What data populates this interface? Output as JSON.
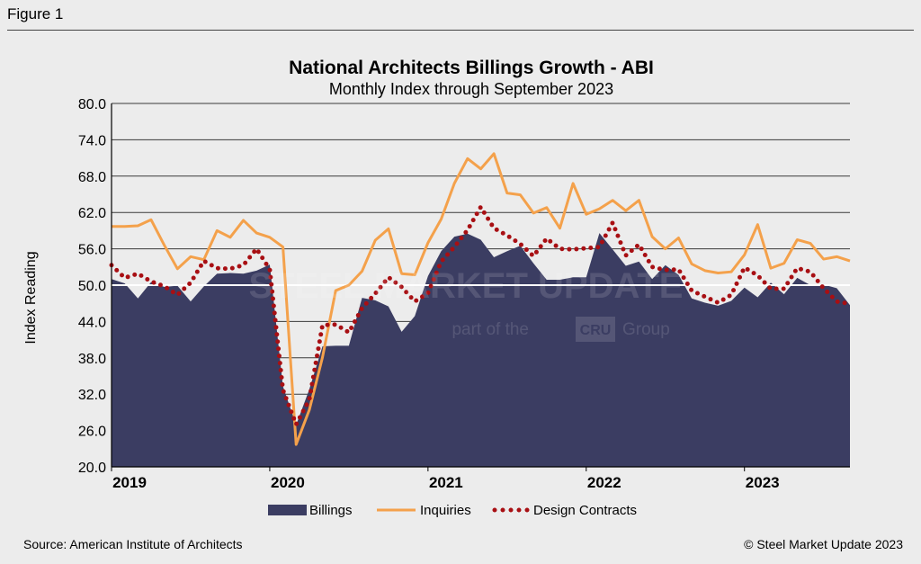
{
  "figure_label": "Figure 1",
  "source": "Source: American Institute of Architects",
  "copyright": "© Steel Market Update 2023",
  "watermark": {
    "brand": "STEEL MARKET UPDATE",
    "sub_prefix": "part of the",
    "sub_logo": "CRU",
    "sub_suffix": "Group"
  },
  "colors": {
    "billings": "#3b3d62",
    "inquiries": "#f4a14b",
    "design_contracts": "#a80f13",
    "reference_line": "#ffffff"
  },
  "chart_data": {
    "type": "area",
    "title": "National Architects Billings Growth - ABI",
    "subtitle": "Monthly Index through September 2023",
    "ylabel": "Index Reading",
    "xlabel": "",
    "ylim": [
      20,
      80
    ],
    "yticks": [
      "20.0",
      "26.0",
      "32.0",
      "38.0",
      "44.0",
      "50.0",
      "56.0",
      "62.0",
      "68.0",
      "74.0",
      "80.0"
    ],
    "reference_value": 50,
    "x": [
      "2019-01",
      "2019-02",
      "2019-03",
      "2019-04",
      "2019-05",
      "2019-06",
      "2019-07",
      "2019-08",
      "2019-09",
      "2019-10",
      "2019-11",
      "2019-12",
      "2020-01",
      "2020-02",
      "2020-03",
      "2020-04",
      "2020-05",
      "2020-06",
      "2020-07",
      "2020-08",
      "2020-09",
      "2020-10",
      "2020-11",
      "2020-12",
      "2021-01",
      "2021-02",
      "2021-03",
      "2021-04",
      "2021-05",
      "2021-06",
      "2021-07",
      "2021-08",
      "2021-09",
      "2021-10",
      "2021-11",
      "2021-12",
      "2022-01",
      "2022-02",
      "2022-03",
      "2022-04",
      "2022-05",
      "2022-06",
      "2022-07",
      "2022-08",
      "2022-09",
      "2022-10",
      "2022-11",
      "2022-12",
      "2023-01",
      "2023-02",
      "2023-03",
      "2023-04",
      "2023-05",
      "2023-06",
      "2023-07",
      "2023-08",
      "2023-09"
    ],
    "xticks": [
      {
        "label": "2019",
        "x": "2019-01"
      },
      {
        "label": "2020",
        "x": "2020-01"
      },
      {
        "label": "2021",
        "x": "2021-01"
      },
      {
        "label": "2022",
        "x": "2022-01"
      },
      {
        "label": "2023",
        "x": "2023-01"
      }
    ],
    "legend_position": "bottom",
    "series": [
      {
        "name": "Billings",
        "style": "area",
        "values": [
          51.0,
          50.3,
          47.8,
          50.5,
          49.7,
          49.9,
          47.3,
          49.8,
          51.9,
          52.0,
          51.9,
          52.4,
          53.4,
          33.3,
          26.9,
          32.8,
          39.9,
          40.0,
          40.0,
          47.9,
          47.5,
          46.5,
          42.3,
          44.9,
          51.5,
          55.6,
          58.0,
          58.5,
          57.5,
          54.6,
          55.6,
          56.5,
          53.6,
          50.9,
          50.9,
          51.3,
          51.3,
          58.6,
          55.9,
          53.2,
          53.9,
          51.0,
          53.3,
          51.7,
          47.8,
          47.1,
          46.6,
          47.4,
          49.6,
          48.0,
          50.4,
          48.5,
          51.2,
          50.0,
          50.1,
          49.5,
          46.7
        ]
      },
      {
        "name": "Inquiries",
        "style": "line",
        "values": [
          59.7,
          59.7,
          59.8,
          60.8,
          56.6,
          52.7,
          54.7,
          54.2,
          59.0,
          57.9,
          60.7,
          58.6,
          57.9,
          56.3,
          23.7,
          29.4,
          38.1,
          49.1,
          50.0,
          52.3,
          57.4,
          59.3,
          51.9,
          51.7,
          57.0,
          60.9,
          66.8,
          70.9,
          69.2,
          71.7,
          65.2,
          64.9,
          61.9,
          62.8,
          59.4,
          66.8,
          61.7,
          62.6,
          64.0,
          62.3,
          64.0,
          58.0,
          56.0,
          57.8,
          53.5,
          52.4,
          52.0,
          52.2,
          55.0,
          60.0,
          52.8,
          53.6,
          57.5,
          56.9,
          54.3,
          54.7,
          54.0
        ]
      },
      {
        "name": "Design Contracts",
        "style": "dotted",
        "values": [
          53.3,
          51.2,
          51.9,
          50.6,
          49.8,
          48.4,
          50.4,
          54.0,
          52.8,
          52.7,
          53.3,
          56.0,
          52.6,
          32.7,
          27.0,
          31.1,
          43.4,
          43.5,
          42.2,
          46.2,
          48.6,
          51.3,
          49.7,
          47.3,
          48.7,
          53.9,
          56.3,
          59.1,
          62.9,
          59.4,
          58.2,
          56.8,
          54.8,
          57.7,
          56.0,
          55.9,
          56.1,
          56.3,
          60.3,
          54.9,
          56.7,
          53.0,
          52.5,
          52.6,
          49.1,
          48.1,
          47.1,
          48.4,
          52.9,
          51.6,
          49.4,
          49.4,
          52.8,
          52.2,
          49.5,
          47.3,
          46.9
        ]
      }
    ]
  }
}
